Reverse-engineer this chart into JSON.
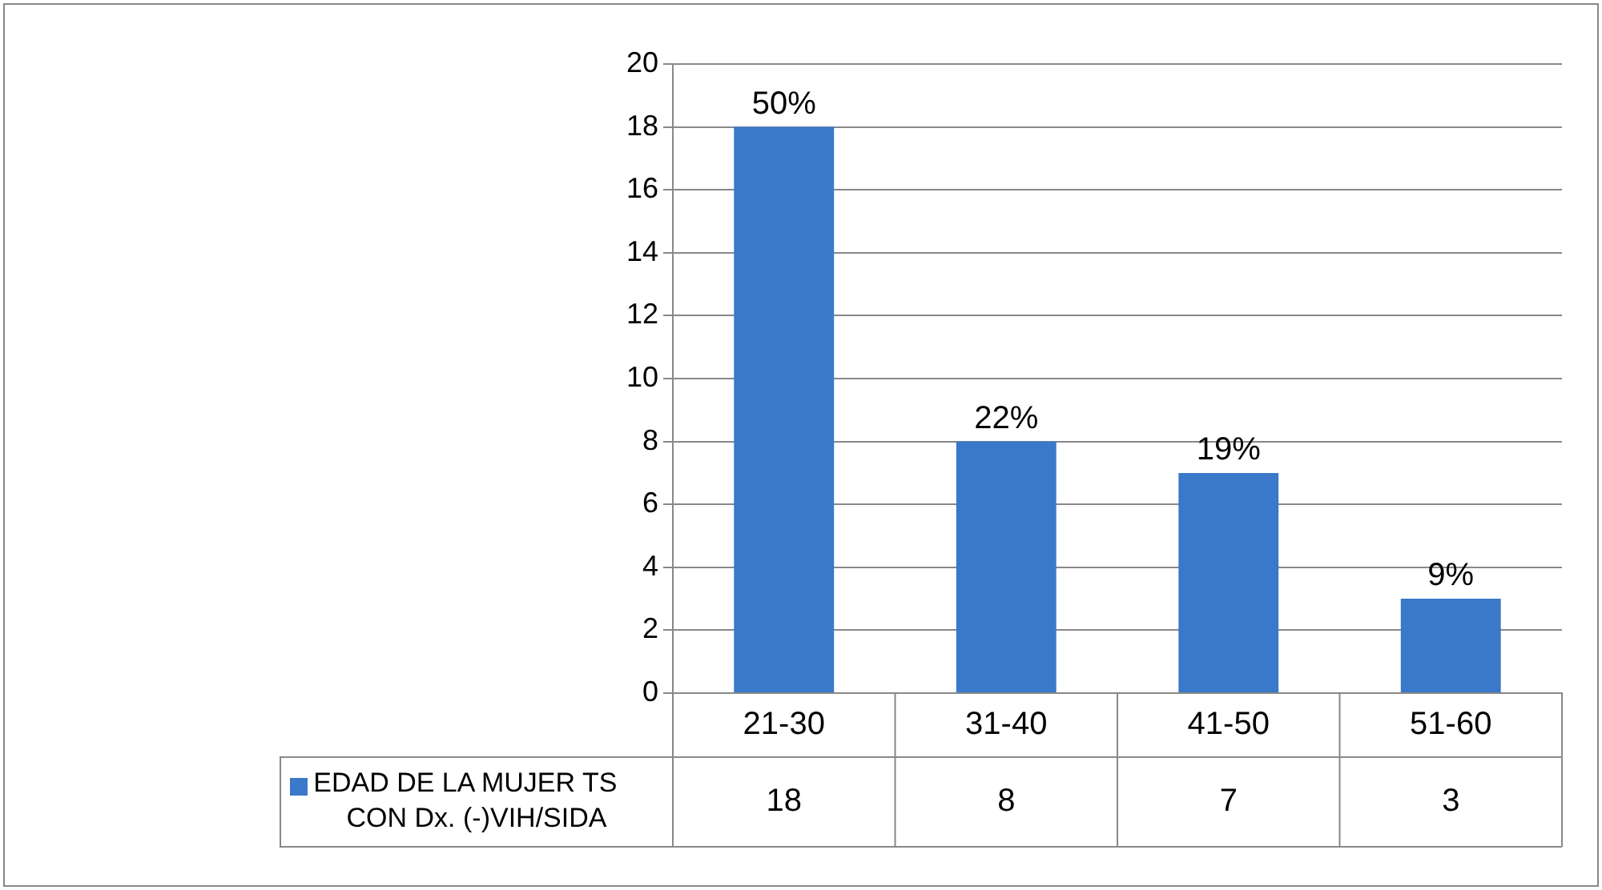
{
  "chart_data": {
    "type": "bar",
    "categories": [
      "21-30",
      "31-40",
      "41-50",
      "51-60"
    ],
    "series": [
      {
        "name": "EDAD DE LA MUJER TS CON Dx. (-)VIH/SIDA",
        "color": "#3a78c9",
        "values": [
          18,
          8,
          7,
          3
        ],
        "value_labels": [
          "18",
          "8",
          "7",
          "3"
        ]
      }
    ],
    "annotations": [
      {
        "text": "50%",
        "x": "21-30",
        "y": 18
      },
      {
        "text": "22%",
        "x": "31-40",
        "y": 8
      },
      {
        "text": "19%",
        "x": "41-50",
        "y": 7
      },
      {
        "text": "9%",
        "x": "51-60",
        "y": 3
      }
    ],
    "ylim": [
      0,
      20
    ],
    "yticks": [
      0,
      2,
      4,
      6,
      8,
      10,
      12,
      14,
      16,
      18,
      20
    ],
    "grid": "y",
    "legend": "bottom left"
  }
}
